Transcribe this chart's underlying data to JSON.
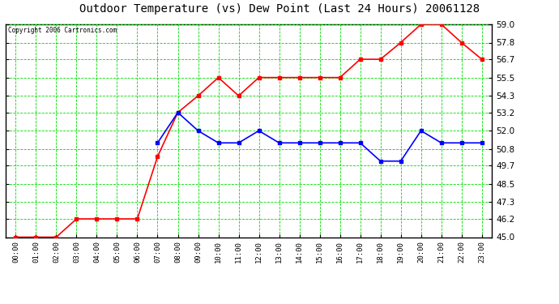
{
  "title": "Outdoor Temperature (vs) Dew Point (Last 24 Hours) 20061128",
  "copyright": "Copyright 2006 Cartronics.com",
  "x_labels": [
    "00:00",
    "01:00",
    "02:00",
    "03:00",
    "04:00",
    "05:00",
    "06:00",
    "07:00",
    "08:00",
    "09:00",
    "10:00",
    "11:00",
    "12:00",
    "13:00",
    "14:00",
    "15:00",
    "16:00",
    "17:00",
    "18:00",
    "19:00",
    "20:00",
    "21:00",
    "22:00",
    "23:00"
  ],
  "temp_data": [
    45.0,
    45.0,
    45.0,
    46.2,
    46.2,
    46.2,
    46.2,
    50.3,
    53.2,
    54.3,
    55.5,
    54.3,
    55.5,
    55.5,
    55.5,
    55.5,
    55.5,
    56.7,
    56.7,
    57.8,
    59.0,
    59.0,
    57.8,
    56.7
  ],
  "dew_data": [
    null,
    null,
    null,
    null,
    null,
    null,
    null,
    51.2,
    53.2,
    52.0,
    51.2,
    51.2,
    52.0,
    51.2,
    51.2,
    51.2,
    51.2,
    51.2,
    50.0,
    50.0,
    52.0,
    51.2,
    51.2,
    51.2
  ],
  "temp_color": "#ff0000",
  "dew_color": "#0000ff",
  "bg_color": "#ffffff",
  "plot_bg_color": "#ffffff",
  "grid_color": "#00dd00",
  "border_color": "#000000",
  "title_color": "#000000",
  "y_min": 45.0,
  "y_max": 59.0,
  "y_ticks": [
    45.0,
    46.2,
    47.3,
    48.5,
    49.7,
    50.8,
    52.0,
    53.2,
    54.3,
    55.5,
    56.7,
    57.8,
    59.0
  ]
}
